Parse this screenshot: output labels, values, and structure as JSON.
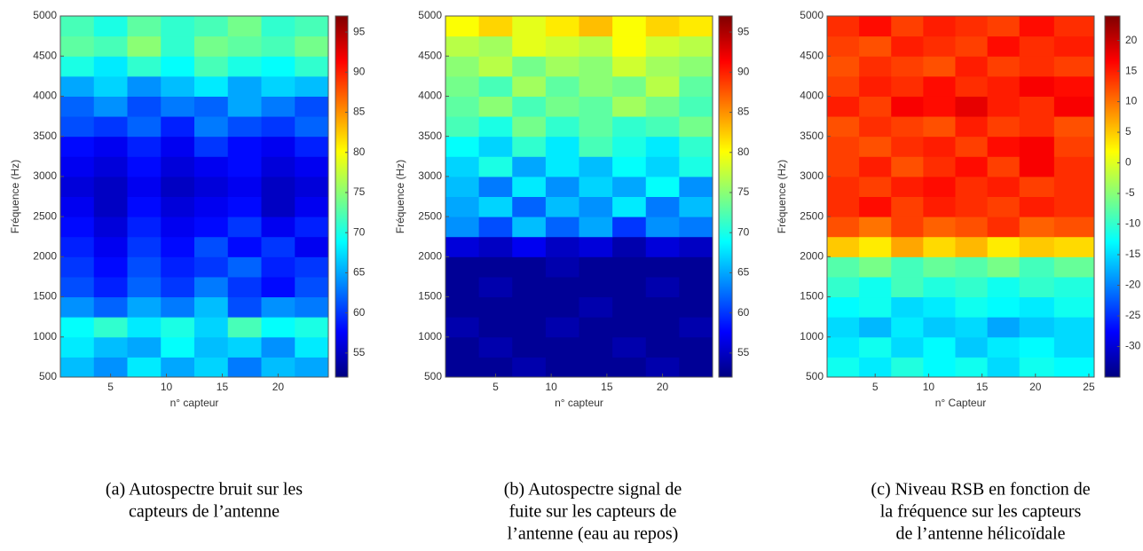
{
  "chart_data": [
    {
      "type": "heatmap",
      "ylabel": "Fréquence (Hz)",
      "xlabel": "n° capteur",
      "caption": [
        "(a)  Autospectre bruit sur les",
        "capteurs de l’antenne"
      ],
      "xlim": [
        0.5,
        24.5
      ],
      "ylim": [
        500,
        5000
      ],
      "xticks": [
        5,
        10,
        15,
        20
      ],
      "yticks": [
        500,
        1000,
        1500,
        2000,
        2500,
        3000,
        3500,
        4000,
        4500,
        5000
      ],
      "colormap": "jet",
      "clim": [
        52,
        97
      ],
      "cticks": [
        55,
        60,
        65,
        70,
        75,
        80,
        85,
        90,
        95
      ],
      "x": [
        2,
        5,
        8,
        11,
        14,
        17,
        20,
        23
      ],
      "y": [
        625,
        875,
        1125,
        1375,
        1625,
        1875,
        2125,
        2375,
        2625,
        2875,
        3125,
        3375,
        3625,
        3875,
        4125,
        4375,
        4625,
        4875
      ],
      "z": [
        [
          66,
          64,
          68,
          65,
          67,
          63,
          66,
          65
        ],
        [
          68,
          66,
          65,
          69,
          66,
          67,
          64,
          68
        ],
        [
          69,
          71,
          68,
          70,
          67,
          72,
          69,
          70
        ],
        [
          64,
          62,
          65,
          63,
          66,
          61,
          64,
          63
        ],
        [
          61,
          59,
          62,
          60,
          63,
          60,
          58,
          61
        ],
        [
          60,
          58,
          61,
          59,
          60,
          62,
          59,
          60
        ],
        [
          59,
          57,
          60,
          58,
          61,
          58,
          60,
          57
        ],
        [
          58,
          56,
          59,
          57,
          58,
          60,
          57,
          59
        ],
        [
          57,
          55,
          58,
          56,
          57,
          58,
          55,
          57
        ],
        [
          56,
          55,
          57,
          55,
          56,
          57,
          55,
          56
        ],
        [
          57,
          56,
          58,
          56,
          57,
          58,
          56,
          57
        ],
        [
          58,
          57,
          59,
          57,
          60,
          58,
          57,
          59
        ],
        [
          61,
          60,
          62,
          59,
          63,
          61,
          60,
          62
        ],
        [
          62,
          64,
          61,
          63,
          62,
          65,
          63,
          61
        ],
        [
          65,
          67,
          64,
          66,
          68,
          65,
          67,
          66
        ],
        [
          70,
          68,
          71,
          69,
          72,
          70,
          69,
          71
        ],
        [
          73,
          72,
          75,
          71,
          74,
          73,
          72,
          74
        ],
        [
          72,
          70,
          73,
          71,
          72,
          74,
          71,
          72
        ]
      ]
    },
    {
      "type": "heatmap",
      "ylabel": "Fréquence (Hz)",
      "xlabel": "n° capteur",
      "caption": [
        "(b) Autospectre signal de",
        "fuite sur les capteurs de",
        "l’antenne (eau au repos)"
      ],
      "xlim": [
        0.5,
        24.5
      ],
      "ylim": [
        500,
        5000
      ],
      "xticks": [
        5,
        10,
        15,
        20
      ],
      "yticks": [
        500,
        1000,
        1500,
        2000,
        2500,
        3000,
        3500,
        4000,
        4500,
        5000
      ],
      "colormap": "jet",
      "clim": [
        52,
        97
      ],
      "cticks": [
        55,
        60,
        65,
        70,
        75,
        80,
        85,
        90,
        95
      ],
      "x": [
        2,
        5,
        8,
        11,
        14,
        17,
        20,
        23
      ],
      "y": [
        625,
        875,
        1125,
        1375,
        1625,
        1875,
        2125,
        2375,
        2625,
        2875,
        3125,
        3375,
        3625,
        3875,
        4125,
        4375,
        4625,
        4875
      ],
      "z": [
        [
          53,
          53,
          54,
          53,
          53,
          53,
          54,
          53
        ],
        [
          53,
          54,
          53,
          53,
          53,
          54,
          53,
          53
        ],
        [
          54,
          53,
          53,
          54,
          53,
          53,
          53,
          54
        ],
        [
          53,
          53,
          53,
          53,
          54,
          53,
          53,
          53
        ],
        [
          53,
          54,
          53,
          53,
          53,
          53,
          54,
          53
        ],
        [
          53,
          53,
          53,
          54,
          53,
          53,
          53,
          53
        ],
        [
          56,
          55,
          57,
          55,
          56,
          54,
          56,
          55
        ],
        [
          64,
          61,
          66,
          62,
          65,
          60,
          64,
          63
        ],
        [
          65,
          67,
          62,
          66,
          64,
          68,
          63,
          66
        ],
        [
          66,
          63,
          68,
          64,
          67,
          65,
          69,
          64
        ],
        [
          67,
          70,
          65,
          68,
          66,
          69,
          67,
          70
        ],
        [
          69,
          67,
          71,
          68,
          72,
          70,
          68,
          71
        ],
        [
          72,
          70,
          74,
          71,
          73,
          71,
          72,
          74
        ],
        [
          73,
          75,
          72,
          74,
          73,
          76,
          74,
          72
        ],
        [
          74,
          72,
          76,
          73,
          75,
          74,
          77,
          73
        ],
        [
          75,
          77,
          74,
          76,
          75,
          78,
          76,
          75
        ],
        [
          77,
          76,
          79,
          78,
          77,
          80,
          78,
          77
        ],
        [
          80,
          82,
          79,
          81,
          83,
          80,
          82,
          81
        ]
      ]
    },
    {
      "type": "heatmap",
      "ylabel": "Fréquence (Hz)",
      "xlabel": "n° Capteur",
      "caption": [
        "(c) Niveau RSB en fonction de",
        "la fréquence sur les capteurs",
        "de l’antenne hélicoïdale"
      ],
      "xlim": [
        0.5,
        25.5
      ],
      "ylim": [
        500,
        5000
      ],
      "xticks": [
        5,
        10,
        15,
        20,
        25
      ],
      "yticks": [
        500,
        1000,
        1500,
        2000,
        2500,
        3000,
        3500,
        4000,
        4500,
        5000
      ],
      "colormap": "jet",
      "clim": [
        -35,
        24
      ],
      "cticks": [
        -30,
        -25,
        -20,
        -15,
        -10,
        -5,
        0,
        5,
        10,
        15,
        20
      ],
      "x": [
        2,
        5,
        8,
        11,
        14,
        17,
        20,
        23.5
      ],
      "y": [
        625,
        875,
        1125,
        1375,
        1625,
        1875,
        2125,
        2375,
        2625,
        2875,
        3125,
        3375,
        3625,
        3875,
        4125,
        4375,
        4625,
        4875
      ],
      "z": [
        [
          -12,
          -14,
          -11,
          -13,
          -12,
          -15,
          -12,
          -13
        ],
        [
          -14,
          -12,
          -15,
          -13,
          -16,
          -14,
          -13,
          -15
        ],
        [
          -15,
          -17,
          -14,
          -16,
          -15,
          -18,
          -16,
          -15
        ],
        [
          -13,
          -12,
          -15,
          -14,
          -12,
          -13,
          -14,
          -12
        ],
        [
          -10,
          -12,
          -9,
          -11,
          -10,
          -12,
          -10,
          -11
        ],
        [
          -8,
          -6,
          -9,
          -7,
          -8,
          -6,
          -9,
          -7
        ],
        [
          5,
          3,
          7,
          4,
          6,
          3,
          5,
          4
        ],
        [
          12,
          10,
          13,
          11,
          12,
          14,
          11,
          12
        ],
        [
          14,
          16,
          13,
          15,
          14,
          13,
          15,
          14
        ],
        [
          14,
          13,
          15,
          16,
          14,
          15,
          13,
          14
        ],
        [
          13,
          15,
          12,
          14,
          16,
          13,
          17,
          14
        ],
        [
          13,
          12,
          14,
          15,
          13,
          16,
          17,
          13
        ],
        [
          12,
          14,
          13,
          12,
          15,
          13,
          14,
          12
        ],
        [
          15,
          13,
          17,
          16,
          18,
          15,
          14,
          17
        ],
        [
          13,
          15,
          14,
          16,
          14,
          15,
          17,
          16
        ],
        [
          12,
          14,
          13,
          12,
          15,
          13,
          14,
          13
        ],
        [
          13,
          12,
          15,
          14,
          13,
          16,
          14,
          15
        ],
        [
          14,
          16,
          13,
          15,
          14,
          13,
          16,
          14
        ]
      ]
    }
  ]
}
